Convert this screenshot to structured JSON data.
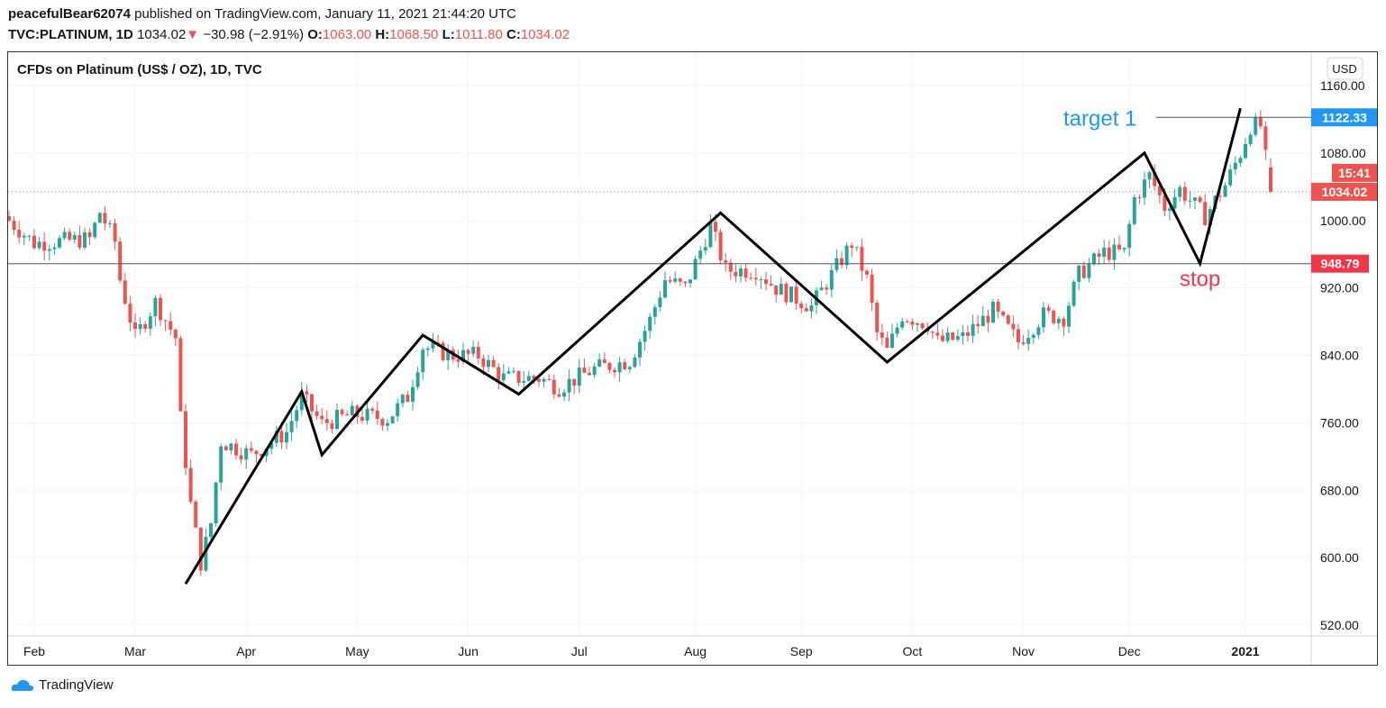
{
  "header": {
    "author": "peacefulBear62074",
    "published": "published on TradingView.com, January 11, 2021 21:44:20 UTC",
    "symbol": "TVC:PLATINUM, 1D",
    "last": "1034.02",
    "change": "−30.98 (−2.91%)",
    "o_label": "O:",
    "o": "1063.00",
    "h_label": "H:",
    "h": "1068.50",
    "l_label": "L:",
    "l": "1011.80",
    "c_label": "C:",
    "c": "1034.02"
  },
  "footer": {
    "brand": "TradingView"
  },
  "colors": {
    "up": "#26a69a",
    "down": "#ef5350",
    "target": "#2196f3",
    "stop": "#f23645"
  },
  "chart_data": {
    "type": "candlestick",
    "title": "CFDs on Platinum (US$ / OZ), 1D, TVC",
    "currency": "USD",
    "ylim": [
      500,
      1180
    ],
    "yticks": [
      1160,
      1080,
      1000,
      920,
      840,
      760,
      680,
      600,
      520
    ],
    "xticks": [
      {
        "label": "Feb",
        "day": 5
      },
      {
        "label": "Mar",
        "day": 25
      },
      {
        "label": "Apr",
        "day": 47
      },
      {
        "label": "May",
        "day": 69
      },
      {
        "label": "Jun",
        "day": 91
      },
      {
        "label": "Jul",
        "day": 113
      },
      {
        "label": "Aug",
        "day": 136
      },
      {
        "label": "Sep",
        "day": 157
      },
      {
        "label": "Oct",
        "day": 179
      },
      {
        "label": "Nov",
        "day": 201
      },
      {
        "label": "Dec",
        "day": 222
      },
      {
        "label": "2021",
        "day": 245
      }
    ],
    "close_anchors": [
      [
        0,
        1000
      ],
      [
        5,
        973
      ],
      [
        16,
        978
      ],
      [
        18,
        1010
      ],
      [
        21,
        975
      ],
      [
        22,
        930
      ],
      [
        25,
        861
      ],
      [
        29,
        903
      ],
      [
        33,
        861
      ],
      [
        34,
        765
      ],
      [
        36,
        663
      ],
      [
        38,
        594
      ],
      [
        40,
        641
      ],
      [
        42,
        738
      ],
      [
        48,
        722
      ],
      [
        55,
        749
      ],
      [
        58,
        791
      ],
      [
        62,
        759
      ],
      [
        68,
        770
      ],
      [
        75,
        765
      ],
      [
        79,
        791
      ],
      [
        82,
        850
      ],
      [
        88,
        840
      ],
      [
        93,
        840
      ],
      [
        98,
        813
      ],
      [
        105,
        813
      ],
      [
        109,
        802
      ],
      [
        116,
        824
      ],
      [
        123,
        834
      ],
      [
        127,
        882
      ],
      [
        130,
        930
      ],
      [
        134,
        920
      ],
      [
        139,
        994
      ],
      [
        142,
        941
      ],
      [
        148,
        941
      ],
      [
        152,
        920
      ],
      [
        159,
        898
      ],
      [
        167,
        973
      ],
      [
        170,
        930
      ],
      [
        172,
        866
      ],
      [
        174,
        845
      ],
      [
        177,
        888
      ],
      [
        182,
        877
      ],
      [
        184,
        856
      ],
      [
        189,
        861
      ],
      [
        195,
        893
      ],
      [
        200,
        856
      ],
      [
        205,
        888
      ],
      [
        209,
        885
      ],
      [
        212,
        936
      ],
      [
        217,
        962
      ],
      [
        221,
        962
      ],
      [
        223,
        1026
      ],
      [
        226,
        1053
      ],
      [
        229,
        1016
      ],
      [
        232,
        1037
      ],
      [
        237,
        1005
      ],
      [
        241,
        1042
      ],
      [
        244,
        1080
      ],
      [
        246,
        1112
      ],
      [
        248,
        1112
      ],
      [
        250,
        1034.02
      ]
    ],
    "trend_lines": [
      [
        35,
        569
      ],
      [
        58,
        797
      ],
      [
        62,
        722
      ],
      [
        82,
        864
      ],
      [
        101,
        794
      ],
      [
        141,
        1009
      ],
      [
        174,
        832
      ],
      [
        225,
        1080
      ],
      [
        236,
        949
      ],
      [
        244,
        1133
      ]
    ],
    "levels": {
      "target_label": "target 1",
      "target": "1122.33",
      "stop_label": "stop",
      "stop": "948.79",
      "last": "1034.02",
      "countdown": "15:41"
    }
  }
}
